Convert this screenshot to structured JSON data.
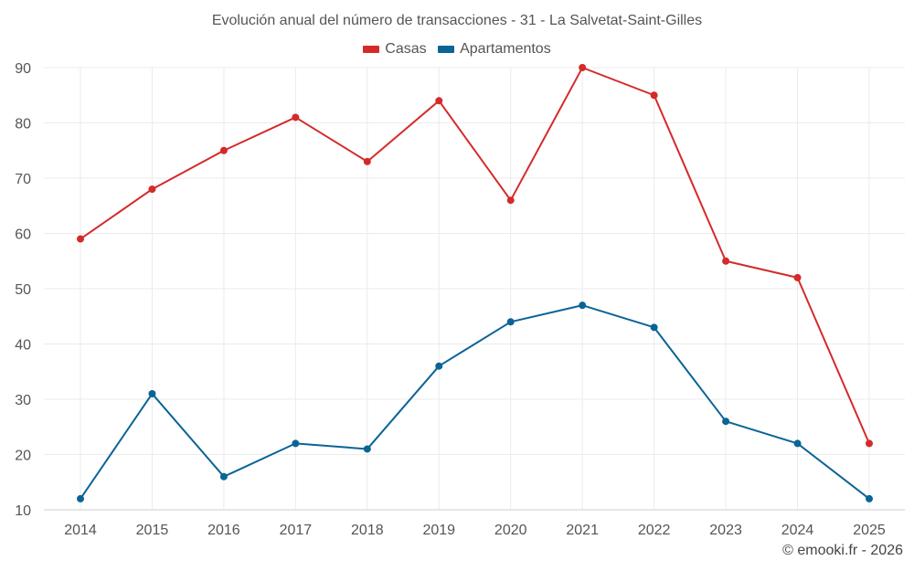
{
  "chart_data": {
    "type": "line",
    "title": "Evolución anual del número de transacciones - 31 - La Salvetat-Saint-Gilles",
    "xlabel": "",
    "ylabel": "",
    "categories": [
      "2014",
      "2015",
      "2016",
      "2017",
      "2018",
      "2019",
      "2020",
      "2021",
      "2022",
      "2023",
      "2024",
      "2025"
    ],
    "ylim": [
      10,
      90
    ],
    "yticks": [
      10,
      20,
      30,
      40,
      50,
      60,
      70,
      80,
      90
    ],
    "grid": true,
    "legend": "top-center",
    "series": [
      {
        "name": "Casas",
        "color": "#d42a2a",
        "values": [
          59,
          68,
          75,
          81,
          73,
          84,
          66,
          90,
          85,
          55,
          52,
          22
        ]
      },
      {
        "name": "Apartamentos",
        "color": "#0a6496",
        "values": [
          12,
          31,
          16,
          22,
          21,
          36,
          44,
          47,
          43,
          26,
          22,
          12
        ]
      }
    ]
  },
  "credit": "© emooki.fr - 2026"
}
